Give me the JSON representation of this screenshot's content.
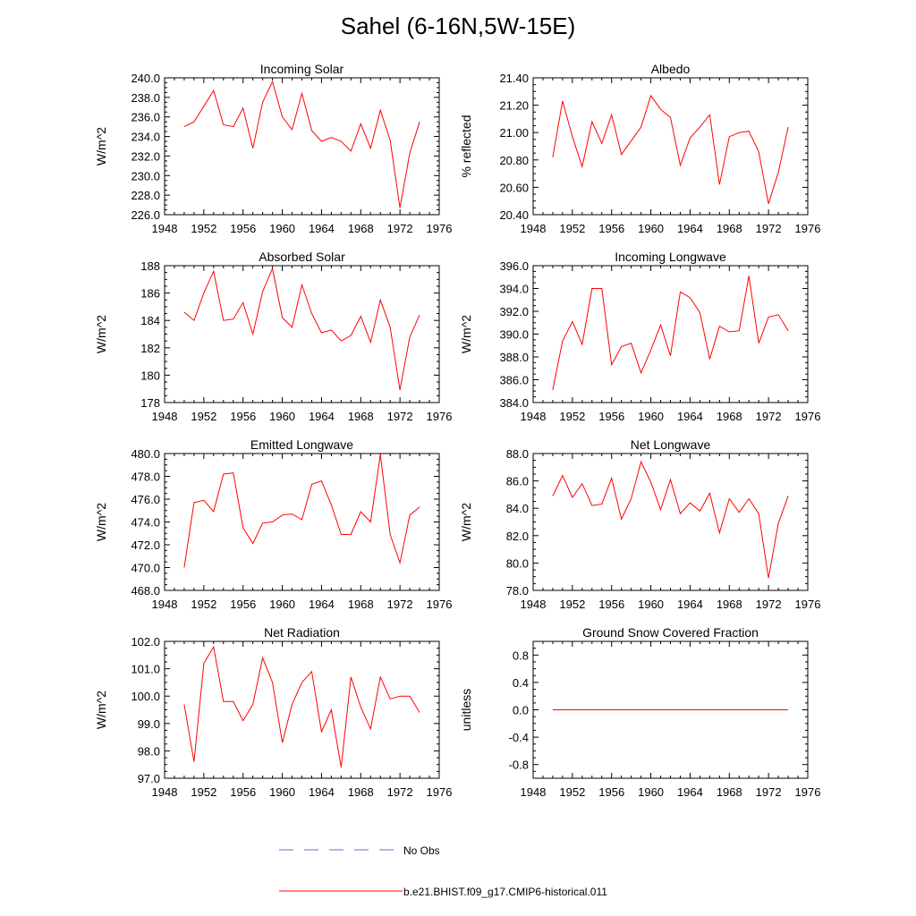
{
  "title": "Sahel (6-16N,5W-15E)",
  "colors": {
    "model_line": "#ff0000",
    "obs_line": "#5b6fd6",
    "axis": "#000000"
  },
  "legend": {
    "obs_label": "No Obs",
    "model_label": "b.e21.BHIST.f09_g17.CMIP6-historical.011"
  },
  "chart_data": [
    {
      "type": "line",
      "title": "Incoming Solar",
      "ylabel": "W/m^2",
      "xlim": [
        1948,
        1976
      ],
      "ylim": [
        226.0,
        240.0
      ],
      "xticks": [
        1948,
        1952,
        1956,
        1960,
        1964,
        1968,
        1972,
        1976
      ],
      "yticks": [
        "226.0",
        "228.0",
        "230.0",
        "232.0",
        "234.0",
        "236.0",
        "238.0",
        "240.0"
      ],
      "x": [
        1950,
        1951,
        1952,
        1953,
        1954,
        1955,
        1956,
        1957,
        1958,
        1959,
        1960,
        1961,
        1962,
        1963,
        1964,
        1965,
        1966,
        1967,
        1968,
        1969,
        1970,
        1971,
        1972,
        1973,
        1974
      ],
      "series": [
        {
          "values": [
            235.0,
            235.5,
            237.1,
            238.7,
            235.2,
            235.0,
            236.9,
            232.8,
            237.5,
            239.6,
            236.0,
            234.7,
            238.4,
            234.6,
            233.5,
            233.9,
            233.5,
            232.5,
            235.3,
            232.8,
            236.7,
            233.6,
            226.7,
            232.3,
            235.5
          ]
        }
      ]
    },
    {
      "type": "line",
      "title": "Albedo",
      "ylabel": "% reflected",
      "xlim": [
        1948,
        1976
      ],
      "ylim": [
        20.4,
        21.4
      ],
      "xticks": [
        1948,
        1952,
        1956,
        1960,
        1964,
        1968,
        1972,
        1976
      ],
      "yticks": [
        "20.40",
        "20.60",
        "20.80",
        "21.00",
        "21.20",
        "21.40"
      ],
      "x": [
        1950,
        1951,
        1952,
        1953,
        1954,
        1955,
        1956,
        1957,
        1958,
        1959,
        1960,
        1961,
        1962,
        1963,
        1964,
        1965,
        1966,
        1967,
        1968,
        1969,
        1970,
        1971,
        1972,
        1973,
        1974
      ],
      "series": [
        {
          "values": [
            20.82,
            21.23,
            20.97,
            20.75,
            21.08,
            20.92,
            21.13,
            20.84,
            20.94,
            21.04,
            21.27,
            21.17,
            21.11,
            20.76,
            20.96,
            21.04,
            21.13,
            20.62,
            20.97,
            21.0,
            21.01,
            20.86,
            20.48,
            20.71,
            21.04
          ]
        }
      ]
    },
    {
      "type": "line",
      "title": "Absorbed Solar",
      "ylabel": "W/m^2",
      "xlim": [
        1948,
        1976
      ],
      "ylim": [
        178,
        188
      ],
      "xticks": [
        1948,
        1952,
        1956,
        1960,
        1964,
        1968,
        1972,
        1976
      ],
      "yticks": [
        "178",
        "180",
        "182",
        "184",
        "186",
        "188"
      ],
      "x": [
        1950,
        1951,
        1952,
        1953,
        1954,
        1955,
        1956,
        1957,
        1958,
        1959,
        1960,
        1961,
        1962,
        1963,
        1964,
        1965,
        1966,
        1967,
        1968,
        1969,
        1970,
        1971,
        1972,
        1973,
        1974
      ],
      "series": [
        {
          "values": [
            184.6,
            184.0,
            186.0,
            187.6,
            184.0,
            184.1,
            185.3,
            183.0,
            186.1,
            187.8,
            184.2,
            183.5,
            186.6,
            184.5,
            183.1,
            183.3,
            182.5,
            182.9,
            184.3,
            182.4,
            185.5,
            183.5,
            178.9,
            182.8,
            184.4
          ]
        }
      ]
    },
    {
      "type": "line",
      "title": "Incoming Longwave",
      "ylabel": "W/m^2",
      "xlim": [
        1948,
        1976
      ],
      "ylim": [
        384.0,
        396.0
      ],
      "xticks": [
        1948,
        1952,
        1956,
        1960,
        1964,
        1968,
        1972,
        1976
      ],
      "yticks": [
        "384.0",
        "386.0",
        "388.0",
        "390.0",
        "392.0",
        "394.0",
        "396.0"
      ],
      "x": [
        1950,
        1951,
        1952,
        1953,
        1954,
        1955,
        1956,
        1957,
        1958,
        1959,
        1960,
        1961,
        1962,
        1963,
        1964,
        1965,
        1966,
        1967,
        1968,
        1969,
        1970,
        1971,
        1972,
        1973,
        1974
      ],
      "series": [
        {
          "values": [
            385.1,
            389.4,
            391.1,
            389.1,
            394.0,
            394.0,
            387.3,
            388.9,
            389.2,
            386.6,
            388.6,
            390.8,
            388.1,
            393.7,
            393.2,
            391.9,
            387.8,
            390.7,
            390.2,
            390.3,
            395.1,
            389.2,
            391.5,
            391.7,
            390.3
          ]
        }
      ]
    },
    {
      "type": "line",
      "title": "Emitted Longwave",
      "ylabel": "W/m^2",
      "xlim": [
        1948,
        1976
      ],
      "ylim": [
        468.0,
        480.0
      ],
      "xticks": [
        1948,
        1952,
        1956,
        1960,
        1964,
        1968,
        1972,
        1976
      ],
      "yticks": [
        "468.0",
        "470.0",
        "472.0",
        "474.0",
        "476.0",
        "478.0",
        "480.0"
      ],
      "x": [
        1950,
        1951,
        1952,
        1953,
        1954,
        1955,
        1956,
        1957,
        1958,
        1959,
        1960,
        1961,
        1962,
        1963,
        1964,
        1965,
        1966,
        1967,
        1968,
        1969,
        1970,
        1971,
        1972,
        1973,
        1974
      ],
      "series": [
        {
          "values": [
            470.0,
            475.7,
            475.9,
            474.9,
            478.2,
            478.3,
            473.5,
            472.1,
            473.9,
            474.0,
            474.6,
            474.7,
            474.2,
            477.3,
            477.6,
            475.5,
            472.9,
            472.9,
            474.9,
            474.0,
            479.9,
            472.9,
            470.4,
            474.6,
            475.3
          ]
        }
      ]
    },
    {
      "type": "line",
      "title": "Net Longwave",
      "ylabel": "W/m^2",
      "xlim": [
        1948,
        1976
      ],
      "ylim": [
        78.0,
        88.0
      ],
      "xticks": [
        1948,
        1952,
        1956,
        1960,
        1964,
        1968,
        1972,
        1976
      ],
      "yticks": [
        "78.0",
        "80.0",
        "82.0",
        "84.0",
        "86.0",
        "88.0"
      ],
      "x": [
        1950,
        1951,
        1952,
        1953,
        1954,
        1955,
        1956,
        1957,
        1958,
        1959,
        1960,
        1961,
        1962,
        1963,
        1964,
        1965,
        1966,
        1967,
        1968,
        1969,
        1970,
        1971,
        1972,
        1973,
        1974
      ],
      "series": [
        {
          "values": [
            84.9,
            86.4,
            84.8,
            85.8,
            84.2,
            84.3,
            86.2,
            83.2,
            84.7,
            87.4,
            85.9,
            83.9,
            86.1,
            83.6,
            84.4,
            83.8,
            85.1,
            82.2,
            84.7,
            83.7,
            84.7,
            83.6,
            78.9,
            82.9,
            84.9
          ]
        }
      ]
    },
    {
      "type": "line",
      "title": "Net Radiation",
      "ylabel": "W/m^2",
      "xlim": [
        1948,
        1976
      ],
      "ylim": [
        97.0,
        102.0
      ],
      "xticks": [
        1948,
        1952,
        1956,
        1960,
        1964,
        1968,
        1972,
        1976
      ],
      "yticks": [
        "97.0",
        "98.0",
        "99.0",
        "100.0",
        "101.0",
        "102.0"
      ],
      "x": [
        1950,
        1951,
        1952,
        1953,
        1954,
        1955,
        1956,
        1957,
        1958,
        1959,
        1960,
        1961,
        1962,
        1963,
        1964,
        1965,
        1966,
        1967,
        1968,
        1969,
        1970,
        1971,
        1972,
        1973,
        1974
      ],
      "series": [
        {
          "values": [
            99.7,
            97.6,
            101.2,
            101.8,
            99.8,
            99.8,
            99.1,
            99.7,
            101.4,
            100.5,
            98.3,
            99.7,
            100.5,
            100.9,
            98.7,
            99.5,
            97.4,
            100.7,
            99.6,
            98.8,
            100.7,
            99.9,
            100.0,
            100.0,
            99.4
          ]
        }
      ]
    },
    {
      "type": "line",
      "title": "Ground Snow Covered Fraction",
      "ylabel": "unitless",
      "xlim": [
        1948,
        1976
      ],
      "ylim": [
        -1.0,
        1.0
      ],
      "xticks": [
        1948,
        1952,
        1956,
        1960,
        1964,
        1968,
        1972,
        1976
      ],
      "yticks": [
        "-0.8",
        "-0.4",
        "0.0",
        "0.4",
        "0.8"
      ],
      "x": [
        1950,
        1951,
        1952,
        1953,
        1954,
        1955,
        1956,
        1957,
        1958,
        1959,
        1960,
        1961,
        1962,
        1963,
        1964,
        1965,
        1966,
        1967,
        1968,
        1969,
        1970,
        1971,
        1972,
        1973,
        1974
      ],
      "series": [
        {
          "values": [
            0,
            0,
            0,
            0,
            0,
            0,
            0,
            0,
            0,
            0,
            0,
            0,
            0,
            0,
            0,
            0,
            0,
            0,
            0,
            0,
            0,
            0,
            0,
            0,
            0
          ]
        }
      ]
    }
  ]
}
